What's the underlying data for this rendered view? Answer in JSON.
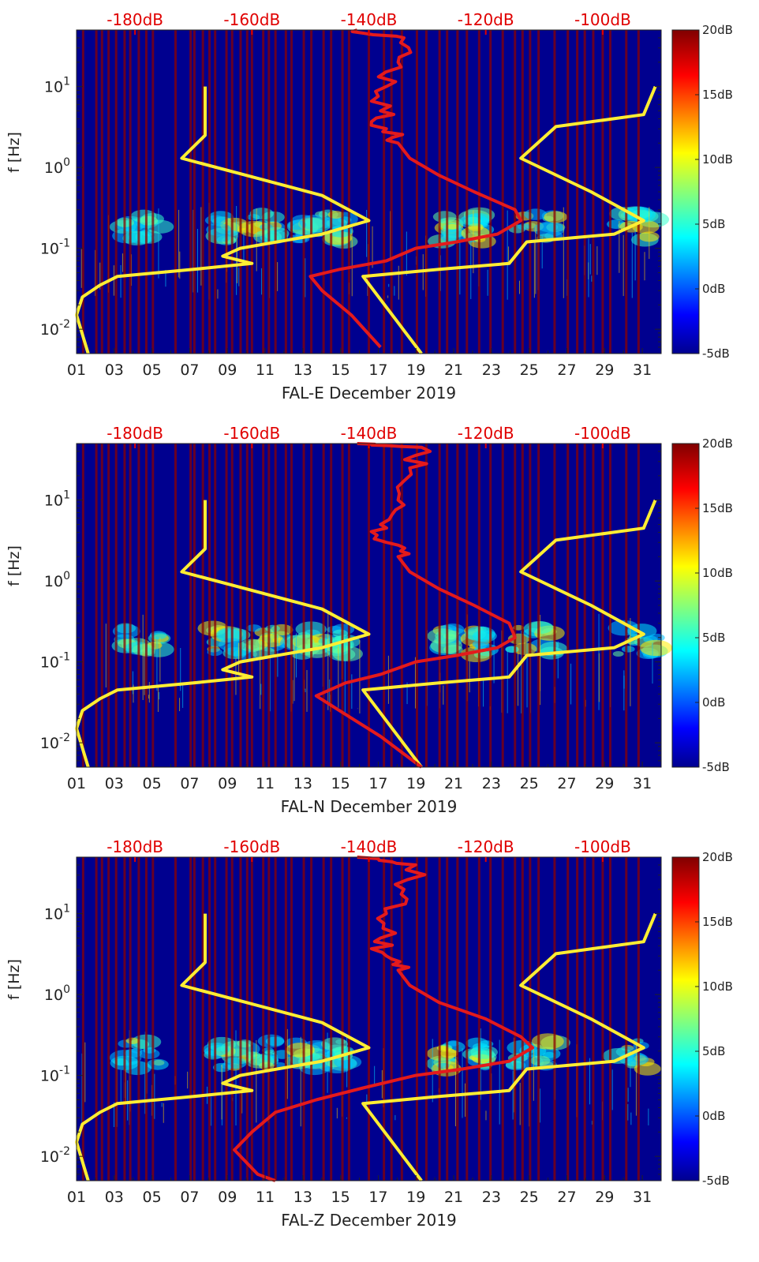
{
  "chart_data": [
    {
      "type": "heatmap",
      "station": "FAL-E",
      "xlabel": "FAL-E December 2019",
      "ylabel": "f [Hz]",
      "x_ticks": [
        "01",
        "03",
        "05",
        "07",
        "09",
        "11",
        "13",
        "15",
        "17",
        "19",
        "21",
        "23",
        "25",
        "27",
        "29",
        "31"
      ],
      "y_ticks": [
        "10^{-2}",
        "10^{-1}",
        "10^{0}",
        "10^{1}"
      ],
      "xlim": [
        1,
        32
      ],
      "ylim_hz": [
        0.005,
        50
      ],
      "top_axis_labels": [
        "-180dB",
        "-160dB",
        "-140dB",
        "-120dB",
        "-100dB"
      ],
      "top_axis_range_db": [
        -190,
        -90
      ],
      "colorbar_ticks": [
        "20dB",
        "15dB",
        "10dB",
        "5dB",
        "0dB",
        "-5dB"
      ],
      "colorbar_range_db": [
        -5,
        20
      ],
      "psd_curve": [
        [
          -142,
          50
        ],
        [
          -134,
          40
        ],
        [
          -135,
          20
        ],
        [
          -137,
          10
        ],
        [
          -138,
          5
        ],
        [
          -137,
          3
        ],
        [
          -135,
          2
        ],
        [
          -133,
          1.3
        ],
        [
          -128,
          0.8
        ],
        [
          -122,
          0.5
        ],
        [
          -115,
          0.3
        ],
        [
          -114,
          0.22
        ],
        [
          -118,
          0.15
        ],
        [
          -125,
          0.12
        ],
        [
          -132,
          0.1
        ],
        [
          -137,
          0.07
        ],
        [
          -145,
          0.055
        ],
        [
          -150,
          0.045
        ],
        [
          -148,
          0.03
        ],
        [
          -143,
          0.015
        ],
        [
          -138,
          0.006
        ]
      ]
    },
    {
      "type": "heatmap",
      "station": "FAL-N",
      "xlabel": "FAL-N December 2019",
      "ylabel": "f [Hz]",
      "x_ticks": [
        "01",
        "03",
        "05",
        "07",
        "09",
        "11",
        "13",
        "15",
        "17",
        "19",
        "21",
        "23",
        "25",
        "27",
        "29",
        "31"
      ],
      "y_ticks": [
        "10^{-2}",
        "10^{-1}",
        "10^{0}",
        "10^{1}"
      ],
      "xlim": [
        1,
        32
      ],
      "ylim_hz": [
        0.005,
        50
      ],
      "top_axis_labels": [
        "-180dB",
        "-160dB",
        "-140dB",
        "-120dB",
        "-100dB"
      ],
      "top_axis_range_db": [
        -190,
        -90
      ],
      "colorbar_ticks": [
        "20dB",
        "15dB",
        "10dB",
        "5dB",
        "0dB",
        "-5dB"
      ],
      "colorbar_range_db": [
        -5,
        20
      ],
      "psd_curve": [
        [
          -142,
          50
        ],
        [
          -131,
          45
        ],
        [
          -133,
          25
        ],
        [
          -135,
          10
        ],
        [
          -138,
          5
        ],
        [
          -137,
          3
        ],
        [
          -135,
          2
        ],
        [
          -133,
          1.3
        ],
        [
          -128,
          0.8
        ],
        [
          -122,
          0.5
        ],
        [
          -116,
          0.3
        ],
        [
          -115,
          0.2
        ],
        [
          -118,
          0.15
        ],
        [
          -125,
          0.12
        ],
        [
          -132,
          0.1
        ],
        [
          -138,
          0.07
        ],
        [
          -144,
          0.055
        ],
        [
          -149,
          0.038
        ],
        [
          -145,
          0.025
        ],
        [
          -138,
          0.012
        ],
        [
          -131,
          0.005
        ]
      ]
    },
    {
      "type": "heatmap",
      "station": "FAL-Z",
      "xlabel": "FAL-Z December 2019",
      "ylabel": "f [Hz]",
      "x_ticks": [
        "01",
        "03",
        "05",
        "07",
        "09",
        "11",
        "13",
        "15",
        "17",
        "19",
        "21",
        "23",
        "25",
        "27",
        "29",
        "31"
      ],
      "y_ticks": [
        "10^{-2}",
        "10^{-1}",
        "10^{0}",
        "10^{1}"
      ],
      "xlim": [
        1,
        32
      ],
      "ylim_hz": [
        0.005,
        50
      ],
      "top_axis_labels": [
        "-180dB",
        "-160dB",
        "-140dB",
        "-120dB",
        "-100dB"
      ],
      "top_axis_range_db": [
        -190,
        -90
      ],
      "colorbar_ticks": [
        "20dB",
        "15dB",
        "10dB",
        "5dB",
        "0dB",
        "-5dB"
      ],
      "colorbar_range_db": [
        -5,
        20
      ],
      "psd_curve": [
        [
          -142,
          50
        ],
        [
          -132,
          40
        ],
        [
          -134,
          20
        ],
        [
          -137,
          10
        ],
        [
          -138,
          5
        ],
        [
          -137,
          3
        ],
        [
          -135,
          2
        ],
        [
          -133,
          1.3
        ],
        [
          -128,
          0.8
        ],
        [
          -120,
          0.5
        ],
        [
          -114,
          0.3
        ],
        [
          -112,
          0.22
        ],
        [
          -116,
          0.15
        ],
        [
          -124,
          0.12
        ],
        [
          -132,
          0.1
        ],
        [
          -141,
          0.07
        ],
        [
          -149,
          0.05
        ],
        [
          -156,
          0.035
        ],
        [
          -160,
          0.02
        ],
        [
          -163,
          0.012
        ],
        [
          -159,
          0.006
        ],
        [
          -156,
          0.005
        ]
      ]
    }
  ],
  "nlnm_curve": [
    [
      -168,
      10
    ],
    [
      -168,
      5
    ],
    [
      -168,
      2.5
    ],
    [
      -172,
      1.3
    ],
    [
      -161,
      0.8
    ],
    [
      -148,
      0.45
    ],
    [
      -140,
      0.22
    ],
    [
      -148,
      0.15
    ],
    [
      -162,
      0.1
    ],
    [
      -165,
      0.08
    ],
    [
      -160,
      0.065
    ],
    [
      -170,
      0.055
    ],
    [
      -183,
      0.045
    ],
    [
      -186,
      0.035
    ],
    [
      -189,
      0.025
    ],
    [
      -190,
      0.015
    ],
    [
      -188,
      0.005
    ]
  ],
  "nhnm_curve": [
    [
      -91,
      10
    ],
    [
      -93,
      4.5
    ],
    [
      -108,
      3.2
    ],
    [
      -114,
      1.3
    ],
    [
      -102,
      0.5
    ],
    [
      -93,
      0.22
    ],
    [
      -98,
      0.15
    ],
    [
      -113,
      0.12
    ],
    [
      -116,
      0.065
    ],
    [
      -128,
      0.055
    ],
    [
      -141,
      0.045
    ],
    [
      -131,
      0.005
    ]
  ],
  "event_days": [
    1.35,
    2.05,
    2.35,
    2.7,
    3.1,
    3.55,
    3.85,
    4.3,
    4.7,
    5.05,
    6.25,
    7.05,
    7.25,
    7.7,
    8.05,
    8.35,
    8.95,
    9.25,
    9.7,
    10.05,
    10.3,
    10.9,
    11.2,
    11.55,
    12.1,
    12.4,
    13.05,
    13.45,
    14.1,
    14.5,
    15.1,
    15.45,
    16.5,
    17.3,
    17.7,
    18.25,
    19.05,
    19.55,
    20.25,
    20.65,
    21.2,
    21.7,
    22.35,
    22.95,
    23.6,
    24.25,
    24.65,
    25.05,
    25.5,
    26.35,
    27.05,
    27.55,
    27.95,
    28.4,
    28.9,
    29.3,
    30.15,
    30.8
  ],
  "colors": {
    "background": "#00008f",
    "psd_line": "#e41a1c",
    "noise_model_line": "#ffee33",
    "event_band": "#8b0000",
    "label_red": "#e00000"
  }
}
